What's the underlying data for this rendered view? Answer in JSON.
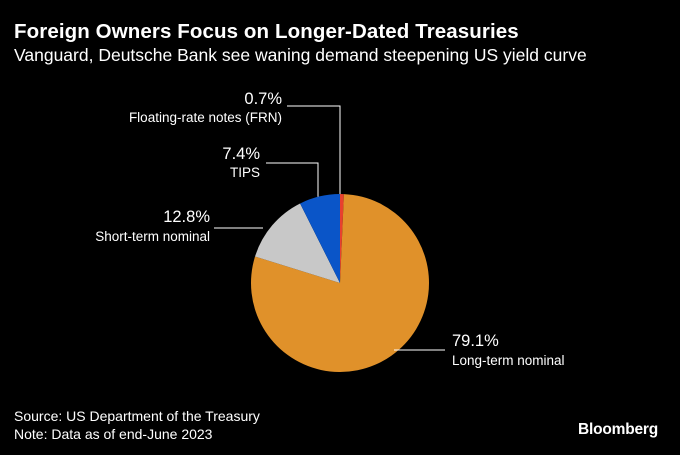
{
  "title": "Foreign Owners Focus on Longer-Dated Treasuries",
  "subtitle": "Vanguard, Deutsche Bank see waning demand steepening US yield curve",
  "source": "Source: US Department of the Treasury",
  "note": "Note: Data as of end-June 2023",
  "logo": "Bloomberg",
  "colors": {
    "background": "#000000",
    "text": "#ffffff",
    "leader_line": "#ffffff"
  },
  "chart_data": {
    "type": "pie",
    "title": "Foreign Owners Focus on Longer-Dated Treasuries",
    "slices": [
      {
        "name": "Floating-rate notes (FRN)",
        "value": 0.7,
        "label": "0.7%",
        "color": "#e8402e"
      },
      {
        "name": "Long-term nominal",
        "value": 79.1,
        "label": "79.1%",
        "color": "#e0912a"
      },
      {
        "name": "Short-term nominal",
        "value": 12.8,
        "label": "12.8%",
        "color": "#c8c8c8"
      },
      {
        "name": "TIPS",
        "value": 7.4,
        "label": "7.4%",
        "color": "#0a55c8"
      }
    ],
    "start": "12 o'clock",
    "direction": "clockwise",
    "legend": "none (direct labels with leader lines)"
  }
}
